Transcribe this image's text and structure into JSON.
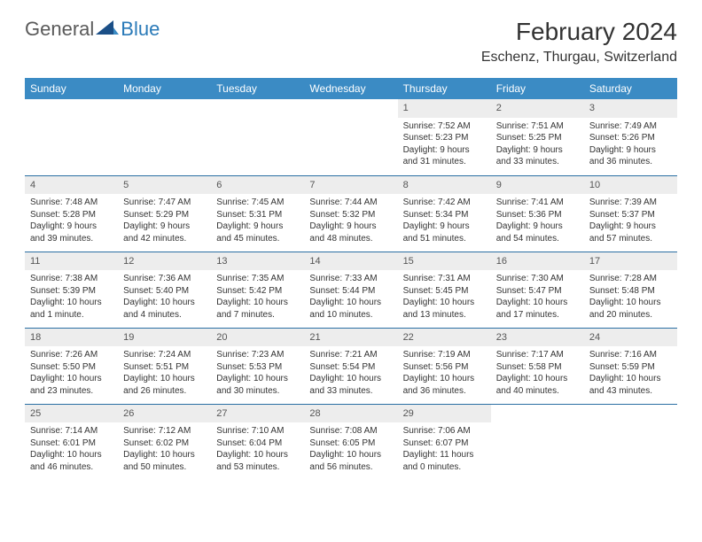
{
  "logo": {
    "text1": "General",
    "text2": "Blue"
  },
  "title": "February 2024",
  "location": "Eschenz, Thurgau, Switzerland",
  "colors": {
    "header_bg": "#3b8bc4",
    "header_text": "#ffffff",
    "daynum_bg": "#ededed",
    "row_border": "#2a6fa3",
    "logo_accent": "#2a7ab8",
    "logo_gray": "#5a5a5a"
  },
  "day_headers": [
    "Sunday",
    "Monday",
    "Tuesday",
    "Wednesday",
    "Thursday",
    "Friday",
    "Saturday"
  ],
  "weeks": [
    [
      null,
      null,
      null,
      null,
      {
        "n": "1",
        "sr": "7:52 AM",
        "ss": "5:23 PM",
        "dl": "9 hours and 31 minutes."
      },
      {
        "n": "2",
        "sr": "7:51 AM",
        "ss": "5:25 PM",
        "dl": "9 hours and 33 minutes."
      },
      {
        "n": "3",
        "sr": "7:49 AM",
        "ss": "5:26 PM",
        "dl": "9 hours and 36 minutes."
      }
    ],
    [
      {
        "n": "4",
        "sr": "7:48 AM",
        "ss": "5:28 PM",
        "dl": "9 hours and 39 minutes."
      },
      {
        "n": "5",
        "sr": "7:47 AM",
        "ss": "5:29 PM",
        "dl": "9 hours and 42 minutes."
      },
      {
        "n": "6",
        "sr": "7:45 AM",
        "ss": "5:31 PM",
        "dl": "9 hours and 45 minutes."
      },
      {
        "n": "7",
        "sr": "7:44 AM",
        "ss": "5:32 PM",
        "dl": "9 hours and 48 minutes."
      },
      {
        "n": "8",
        "sr": "7:42 AM",
        "ss": "5:34 PM",
        "dl": "9 hours and 51 minutes."
      },
      {
        "n": "9",
        "sr": "7:41 AM",
        "ss": "5:36 PM",
        "dl": "9 hours and 54 minutes."
      },
      {
        "n": "10",
        "sr": "7:39 AM",
        "ss": "5:37 PM",
        "dl": "9 hours and 57 minutes."
      }
    ],
    [
      {
        "n": "11",
        "sr": "7:38 AM",
        "ss": "5:39 PM",
        "dl": "10 hours and 1 minute."
      },
      {
        "n": "12",
        "sr": "7:36 AM",
        "ss": "5:40 PM",
        "dl": "10 hours and 4 minutes."
      },
      {
        "n": "13",
        "sr": "7:35 AM",
        "ss": "5:42 PM",
        "dl": "10 hours and 7 minutes."
      },
      {
        "n": "14",
        "sr": "7:33 AM",
        "ss": "5:44 PM",
        "dl": "10 hours and 10 minutes."
      },
      {
        "n": "15",
        "sr": "7:31 AM",
        "ss": "5:45 PM",
        "dl": "10 hours and 13 minutes."
      },
      {
        "n": "16",
        "sr": "7:30 AM",
        "ss": "5:47 PM",
        "dl": "10 hours and 17 minutes."
      },
      {
        "n": "17",
        "sr": "7:28 AM",
        "ss": "5:48 PM",
        "dl": "10 hours and 20 minutes."
      }
    ],
    [
      {
        "n": "18",
        "sr": "7:26 AM",
        "ss": "5:50 PM",
        "dl": "10 hours and 23 minutes."
      },
      {
        "n": "19",
        "sr": "7:24 AM",
        "ss": "5:51 PM",
        "dl": "10 hours and 26 minutes."
      },
      {
        "n": "20",
        "sr": "7:23 AM",
        "ss": "5:53 PM",
        "dl": "10 hours and 30 minutes."
      },
      {
        "n": "21",
        "sr": "7:21 AM",
        "ss": "5:54 PM",
        "dl": "10 hours and 33 minutes."
      },
      {
        "n": "22",
        "sr": "7:19 AM",
        "ss": "5:56 PM",
        "dl": "10 hours and 36 minutes."
      },
      {
        "n": "23",
        "sr": "7:17 AM",
        "ss": "5:58 PM",
        "dl": "10 hours and 40 minutes."
      },
      {
        "n": "24",
        "sr": "7:16 AM",
        "ss": "5:59 PM",
        "dl": "10 hours and 43 minutes."
      }
    ],
    [
      {
        "n": "25",
        "sr": "7:14 AM",
        "ss": "6:01 PM",
        "dl": "10 hours and 46 minutes."
      },
      {
        "n": "26",
        "sr": "7:12 AM",
        "ss": "6:02 PM",
        "dl": "10 hours and 50 minutes."
      },
      {
        "n": "27",
        "sr": "7:10 AM",
        "ss": "6:04 PM",
        "dl": "10 hours and 53 minutes."
      },
      {
        "n": "28",
        "sr": "7:08 AM",
        "ss": "6:05 PM",
        "dl": "10 hours and 56 minutes."
      },
      {
        "n": "29",
        "sr": "7:06 AM",
        "ss": "6:07 PM",
        "dl": "11 hours and 0 minutes."
      },
      null,
      null
    ]
  ],
  "labels": {
    "sunrise": "Sunrise:",
    "sunset": "Sunset:",
    "daylight": "Daylight:"
  }
}
